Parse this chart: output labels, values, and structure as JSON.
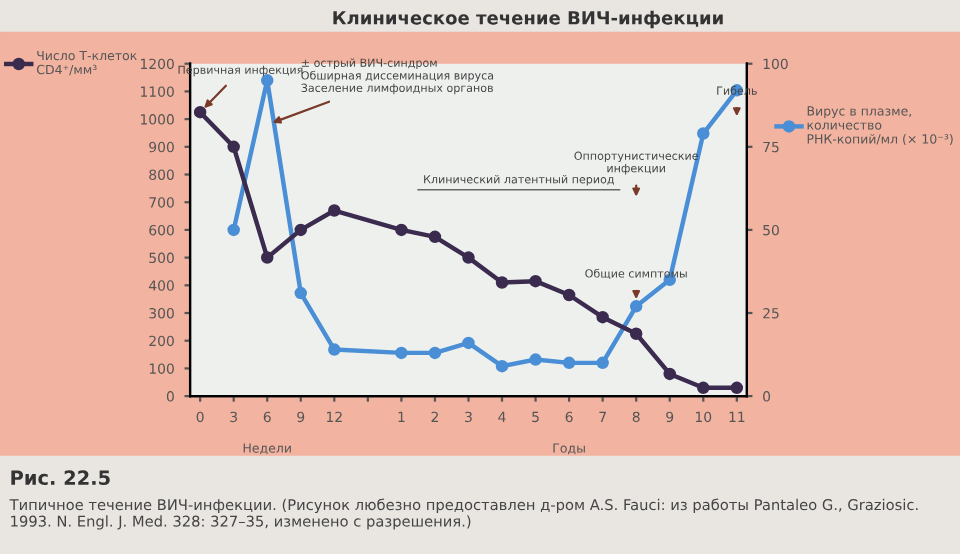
{
  "chart_data": {
    "type": "line",
    "title": "Клиническое течение ВИЧ-инфекции",
    "categories": [
      "0",
      "3",
      "6",
      "9",
      "12",
      null,
      "1",
      "2",
      "3",
      "4",
      "5",
      "6",
      "7",
      "8",
      "9",
      "10",
      "11"
    ],
    "series": [
      {
        "name": "Число Т-клеток\nCD4⁺/мм³",
        "color": "#3b2b4f",
        "values": [
          1025,
          900,
          500,
          600,
          670,
          null,
          600,
          575,
          500,
          410,
          415,
          365,
          285,
          225,
          80,
          30,
          30
        ]
      },
      {
        "name": "Вирус в плазме,\nколичество\nРНК-копий/мл (× 10⁻³)",
        "color": "#4a8fd6",
        "axis": "y2",
        "values": [
          null,
          50,
          95,
          31,
          14,
          null,
          13,
          13,
          16,
          9,
          11,
          10,
          10,
          27,
          35,
          79,
          92
        ]
      }
    ],
    "ylim": [
      0,
      1200
    ],
    "yticks": [
      0,
      100,
      200,
      300,
      400,
      500,
      600,
      700,
      800,
      900,
      1000,
      1100,
      1200
    ],
    "y2lim": [
      0,
      100
    ],
    "y2ticks": [
      0,
      25,
      50,
      75,
      100
    ],
    "marker": "circle",
    "line_style": "solid",
    "grid": false,
    "legend": "left",
    "annotations": [
      {
        "text": "Первичная инфекция",
        "x": "0",
        "y": 1025
      },
      {
        "text": "± острый ВИЧ-синдром\nОбширная диссеминация вируса\nЗаселение лимфоидных органов",
        "x": "6",
        "y": 980
      },
      "Клинический латентный период",
      {
        "text": "Общие симптомы",
        "x": "8",
        "y": 330
      },
      "Оппортунистические\nинфекции",
      "Гибель",
      "Недели",
      "Годы",
      "Рис. 22.5",
      "Типичное течение ВИЧ-инфекции. (Рисунок любезно предоставлен д-ром A.S. Fauci: из работы Pantaleo G., Graziosic. 1993. N. Engl. J. Med. 328: 327–35, изменено с разрешения.)"
    ]
  }
}
